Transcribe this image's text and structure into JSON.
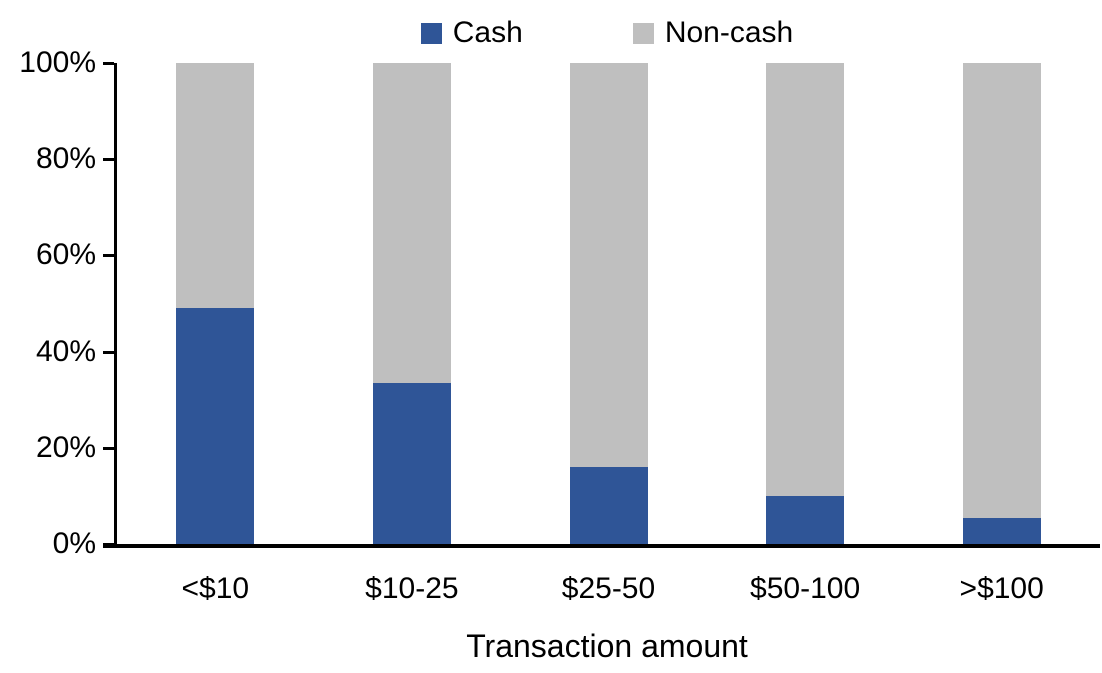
{
  "chart_data": {
    "type": "bar",
    "stacked": true,
    "orientation": "vertical",
    "categories": [
      "<$10",
      "$10-25",
      "$25-50",
      "$50-100",
      ">$100"
    ],
    "series": [
      {
        "name": "Cash",
        "color": "#2F5597",
        "values": [
          49,
          33.5,
          16,
          10,
          5.5
        ]
      },
      {
        "name": "Non-cash",
        "color": "#BFBFBF",
        "values": [
          51,
          66.5,
          84,
          90,
          94.5
        ]
      }
    ],
    "xlabel": "Transaction amount",
    "ylim": [
      0,
      100
    ],
    "ytick_labels": [
      "0%",
      "20%",
      "40%",
      "60%",
      "80%",
      "100%"
    ],
    "grid": false,
    "legend_position": "top-center",
    "axis_color": "#000000",
    "text_color": "#000000",
    "background": "#FFFFFF"
  }
}
